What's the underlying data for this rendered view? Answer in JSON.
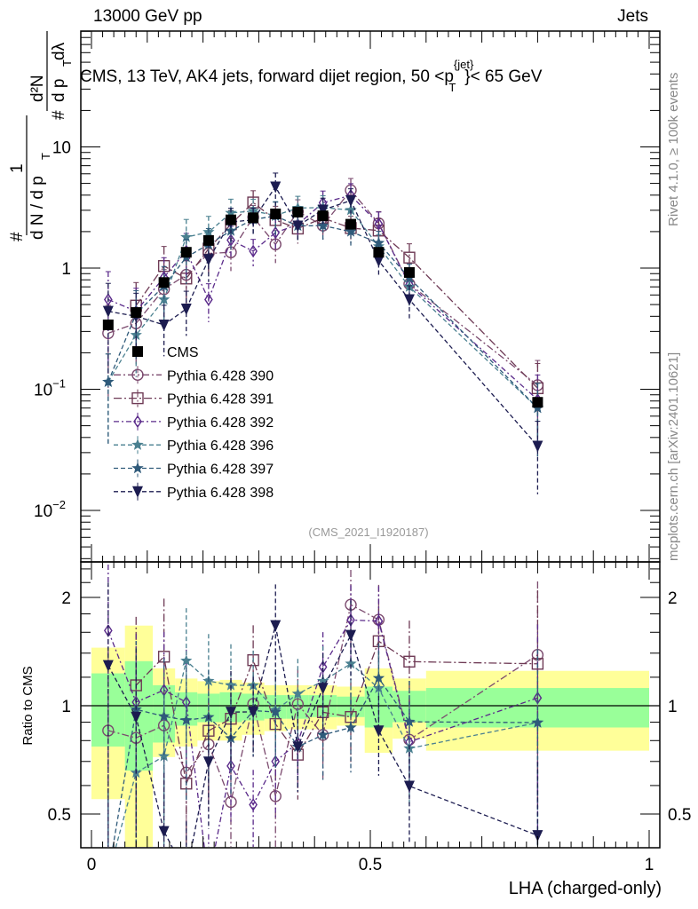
{
  "header": {
    "left": "13000 GeV pp",
    "right": "Jets"
  },
  "side_labels": {
    "rivet": "Rivet 4.1.0, ≥ 100k events",
    "mcplots": "mcplots.cern.ch [arXiv:2401.10621]"
  },
  "analysis_id": "(CMS_2021_I1920187)",
  "chart_data": {
    "type": "scatter",
    "title": "CMS, 13 TeV, AK4 jets, forward dijet region, 50 <p_T^{jet}< 65 GeV",
    "title_parts": {
      "main": "CMS, 13 TeV, AK4 jets, forward dijet region, 50 <p",
      "sup": "{jet}",
      "sub": "T",
      "tail": "}< 65 GeV"
    },
    "ylabel": "1/(dN/dp_T) d²N/(dp_T dλ)",
    "ylabel_parts": {
      "one": "1",
      "dn": "d N / d p",
      "T": "T",
      "hash1": "#",
      "hash2": "#",
      "d2n": "d²N",
      "dpdl": "d p",
      "dl": "dλ"
    },
    "xlabel": "LHA (charged-only)",
    "ratio_ylabel": "Ratio to CMS",
    "yscale": "log",
    "ylim": [
      0.0038,
      90
    ],
    "xlim": [
      -0.02,
      1.02
    ],
    "ratio_ylim": [
      0.4,
      2.48
    ],
    "y_tick_labels": [
      {
        "v": 10,
        "t": "10"
      },
      {
        "v": 1,
        "t": "1"
      },
      {
        "v": 0.1,
        "t": "10",
        "sup": "−1"
      },
      {
        "v": 0.01,
        "t": "10",
        "sup": "−2"
      }
    ],
    "x_tick_labels": [
      {
        "v": 0,
        "t": "0"
      },
      {
        "v": 0.5,
        "t": "0.5"
      },
      {
        "v": 1,
        "t": "1"
      }
    ],
    "ratio_tick_labels": [
      {
        "v": 2,
        "t": "2"
      },
      {
        "v": 1,
        "t": "1"
      },
      {
        "v": 0.5,
        "t": "0.5"
      }
    ],
    "x": [
      0.03,
      0.08,
      0.13,
      0.17,
      0.21,
      0.25,
      0.29,
      0.33,
      0.37,
      0.415,
      0.465,
      0.515,
      0.57,
      0.8
    ],
    "bin_edges": [
      0,
      0.06,
      0.11,
      0.15,
      0.19,
      0.23,
      0.27,
      0.31,
      0.35,
      0.39,
      0.44,
      0.49,
      0.54,
      0.6,
      1.0
    ],
    "data": {
      "name": "CMS",
      "values": [
        0.34,
        0.43,
        0.76,
        1.35,
        1.69,
        2.5,
        2.6,
        2.8,
        2.9,
        2.7,
        2.3,
        1.35,
        0.92,
        0.078
      ],
      "band_total": [
        [
          0.55,
          1.45
        ],
        [
          0.38,
          1.67
        ],
        [
          0.72,
          1.27
        ],
        [
          0.77,
          1.19
        ],
        [
          0.8,
          1.17
        ],
        [
          0.8,
          1.18
        ],
        [
          0.83,
          1.16
        ],
        [
          0.85,
          1.14
        ],
        [
          0.86,
          1.14
        ],
        [
          0.86,
          1.14
        ],
        [
          0.88,
          1.13
        ],
        [
          0.74,
          1.27
        ],
        [
          0.81,
          1.19
        ],
        [
          0.75,
          1.25
        ]
      ],
      "band_stat": [
        [
          0.77,
          1.23
        ],
        [
          0.66,
          1.33
        ],
        [
          0.79,
          1.14
        ],
        [
          0.88,
          1.09
        ],
        [
          0.9,
          1.08
        ],
        [
          0.9,
          1.09
        ],
        [
          0.91,
          1.08
        ],
        [
          0.92,
          1.07
        ],
        [
          0.92,
          1.07
        ],
        [
          0.93,
          1.07
        ],
        [
          0.93,
          1.06
        ],
        [
          0.87,
          1.13
        ],
        [
          0.9,
          1.1
        ],
        [
          0.87,
          1.12
        ]
      ]
    },
    "mc_rel_err": [
      0.7,
      0.55,
      0.45,
      0.4,
      0.35,
      0.3,
      0.25,
      0.3,
      0.25,
      0.25,
      0.25,
      0.25,
      0.3,
      0.6
    ],
    "series": [
      {
        "name": "Pythia 6.428 390",
        "marker": "circle",
        "color": "#7b4a6e",
        "dash": "8,3,2,3",
        "values": [
          0.29,
          0.35,
          0.67,
          0.88,
          1.32,
          1.35,
          2.63,
          1.57,
          2.93,
          2.24,
          4.39,
          2.34,
          0.74,
          0.108
        ]
      },
      {
        "name": "Pythia 6.428 391",
        "marker": "square",
        "color": "#6e3a55",
        "dash": "9,3,2,3",
        "values": [
          null,
          0.49,
          1.04,
          0.82,
          1.44,
          2.3,
          3.48,
          2.49,
          2.12,
          2.59,
          2.14,
          2.04,
          1.22,
          0.102
        ]
      },
      {
        "name": "Pythia 6.428 392",
        "marker": "diamond",
        "color": "#5a2a8a",
        "dash": "6,3,2,3",
        "values": [
          0.55,
          0.44,
          0.84,
          1.38,
          0.55,
          1.7,
          1.38,
          1.96,
          2.29,
          3.46,
          3.98,
          2.32,
          0.73,
          0.082
        ]
      },
      {
        "name": "Pythia 6.428 396",
        "marker": "star",
        "color": "#4a8090",
        "dash": "5,3",
        "values": [
          0.115,
          0.28,
          0.55,
          1.8,
          1.98,
          2.85,
          2.96,
          2.72,
          3.13,
          3.16,
          3.01,
          1.51,
          0.7,
          0.07
        ]
      },
      {
        "name": "Pythia 6.428 397",
        "marker": "star",
        "color": "#2f5a7a",
        "dash": "5,3",
        "values": [
          0.115,
          0.42,
          0.71,
          1.23,
          1.57,
          2.03,
          2.52,
          2.69,
          2.23,
          2.24,
          2.0,
          1.61,
          0.83,
          0.07
        ]
      },
      {
        "name": "Pythia 6.428 398",
        "marker": "triangle-down",
        "color": "#1c1c50",
        "dash": "5,3",
        "values": [
          0.44,
          0.4,
          0.34,
          0.46,
          1.18,
          2.4,
          2.5,
          4.68,
          2.23,
          3.02,
          3.61,
          1.15,
          0.55,
          0.034
        ]
      }
    ],
    "legend_position": "middle-left",
    "band_colors": {
      "total": "#ffff99",
      "stat": "#99ff99"
    }
  }
}
